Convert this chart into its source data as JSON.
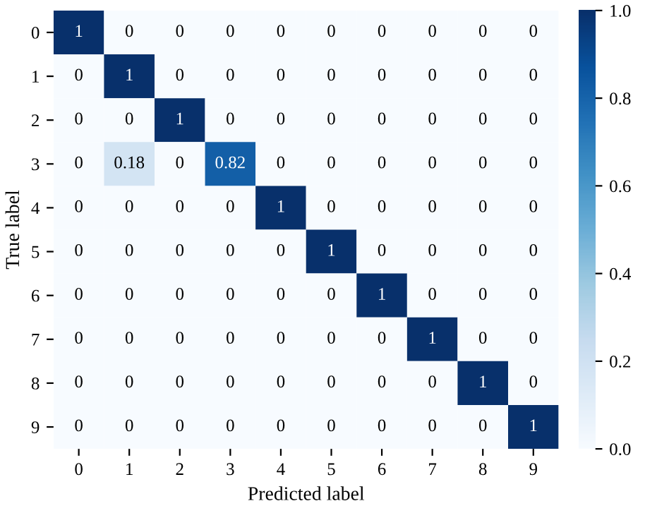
{
  "chart_data": {
    "type": "heatmap",
    "xlabel": "Predicted label",
    "ylabel": "True label",
    "categories": [
      "0",
      "1",
      "2",
      "3",
      "4",
      "5",
      "6",
      "7",
      "8",
      "9"
    ],
    "y_categories": [
      "0",
      "1",
      "2",
      "3",
      "4",
      "5",
      "6",
      "7",
      "8",
      "9"
    ],
    "cells": [
      [
        1,
        0,
        0,
        0,
        0,
        0,
        0,
        0,
        0,
        0
      ],
      [
        0,
        1,
        0,
        0,
        0,
        0,
        0,
        0,
        0,
        0
      ],
      [
        0,
        0,
        1,
        0,
        0,
        0,
        0,
        0,
        0,
        0
      ],
      [
        0,
        0.18,
        0,
        0.82,
        0,
        0,
        0,
        0,
        0,
        0
      ],
      [
        0,
        0,
        0,
        0,
        1,
        0,
        0,
        0,
        0,
        0
      ],
      [
        0,
        0,
        0,
        0,
        0,
        1,
        0,
        0,
        0,
        0
      ],
      [
        0,
        0,
        0,
        0,
        0,
        0,
        1,
        0,
        0,
        0
      ],
      [
        0,
        0,
        0,
        0,
        0,
        0,
        0,
        1,
        0,
        0
      ],
      [
        0,
        0,
        0,
        0,
        0,
        0,
        0,
        0,
        1,
        0
      ],
      [
        0,
        0,
        0,
        0,
        0,
        0,
        0,
        0,
        0,
        1
      ]
    ],
    "data_labels": true,
    "clim": [
      0,
      1
    ],
    "cticks": [
      {
        "value": 0,
        "label": "0.0"
      },
      {
        "value": 0.2,
        "label": "0.2"
      },
      {
        "value": 0.4,
        "label": "0.4"
      },
      {
        "value": 0.6,
        "label": "0.6"
      },
      {
        "value": 0.8,
        "label": "0.8"
      },
      {
        "value": 1,
        "label": "1.0"
      }
    ]
  }
}
